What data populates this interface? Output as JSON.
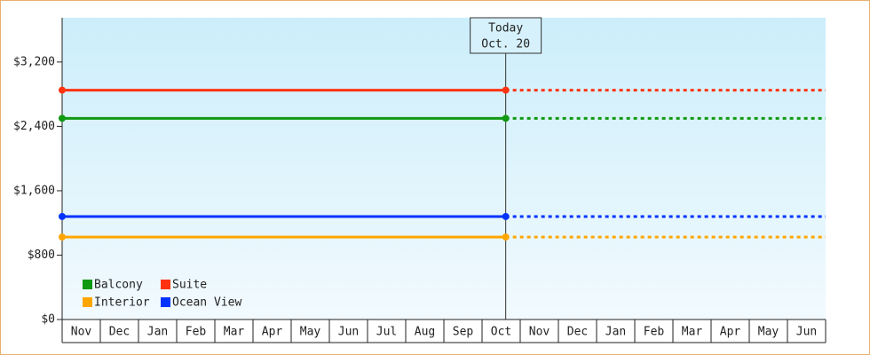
{
  "chart_data": {
    "type": "line",
    "categories": [
      "Nov",
      "Dec",
      "Jan",
      "Feb",
      "Mar",
      "Apr",
      "May",
      "Jun",
      "Jul",
      "Aug",
      "Sep",
      "Oct",
      "Nov",
      "Dec",
      "Jan",
      "Feb",
      "Mar",
      "Apr",
      "May",
      "Jun"
    ],
    "annotation": {
      "title": "Today",
      "date": "Oct. 20"
    },
    "today_index": 11,
    "series": [
      {
        "name": "Balcony",
        "color": "#119911",
        "value": 2500
      },
      {
        "name": "Suite",
        "color": "#ff3311",
        "value": 2850
      },
      {
        "name": "Interior",
        "color": "#ffa500",
        "value": 1025
      },
      {
        "name": "Ocean View",
        "color": "#0033ff",
        "value": 1280
      }
    ],
    "ylim": [
      0,
      3750
    ],
    "yticks": [
      {
        "value": 0,
        "label": "$0"
      },
      {
        "value": 800,
        "label": "$800"
      },
      {
        "value": 1600,
        "label": "$1,600"
      },
      {
        "value": 2400,
        "label": "$2,400"
      },
      {
        "value": 3200,
        "label": "$3,200"
      }
    ]
  }
}
